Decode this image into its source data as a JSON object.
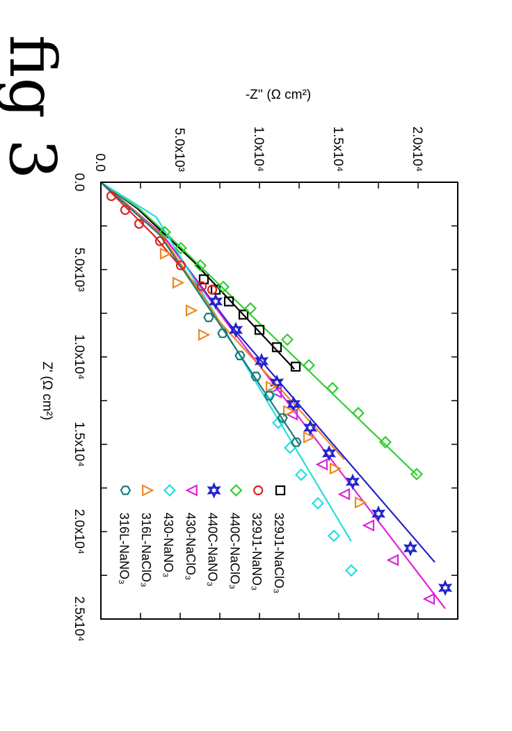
{
  "figure_label": "fig 3",
  "chart_data": {
    "type": "scatter",
    "orientation": "rotated 90 degrees clockwise",
    "xlabel": "Z' (Ω cm²)",
    "ylabel": "-Z'' (Ω cm²)",
    "xlim": [
      0,
      25000
    ],
    "ylim": [
      0,
      22000
    ],
    "x_ticks": [
      0,
      5000,
      10000,
      15000,
      20000,
      25000
    ],
    "x_tick_labels": [
      "0.0",
      "5.0x10³",
      "1.0x10⁴",
      "1.5x10⁴",
      "2.0x10⁴",
      "2.5x10⁴"
    ],
    "y_ticks": [
      0,
      5000,
      10000,
      15000,
      20000
    ],
    "y_tick_labels": [
      "0.0",
      "5.0x10³",
      "1.0x10⁴",
      "1.5x10⁴",
      "2.0x10⁴"
    ],
    "grid": false,
    "legend_position": "bottom-right",
    "series": [
      {
        "name": "329J1-NaClO₃",
        "color": "#000000",
        "marker": "square",
        "points": [
          [
            5556,
            6491
          ],
          [
            6151,
            7237
          ],
          [
            6825,
            8070
          ],
          [
            7579,
            8991
          ],
          [
            8452,
            10000
          ],
          [
            9444,
            11096
          ],
          [
            10556,
            12281
          ]
        ],
        "fit": [
          [
            0,
            0
          ],
          [
            1500,
            2300
          ],
          [
            4500,
            5800
          ],
          [
            10700,
            12200
          ]
        ]
      },
      {
        "name": "329J1-NaNO₃",
        "color": "#e02020",
        "marker": "circle",
        "points": [
          [
            794,
            658
          ],
          [
            1587,
            1535
          ],
          [
            2381,
            2412
          ],
          [
            3373,
            3728
          ],
          [
            4762,
            5044
          ],
          [
            5952,
            6360
          ],
          [
            6151,
            7018
          ]
        ],
        "fit": [
          [
            0,
            0
          ],
          [
            3000,
            3300
          ],
          [
            6200,
            6300
          ]
        ]
      },
      {
        "name": "440C-NaClO₃",
        "color": "#33cc33",
        "marker": "diamond",
        "points": [
          [
            2857,
            4035
          ],
          [
            3770,
            5044
          ],
          [
            4762,
            6272
          ],
          [
            5992,
            7719
          ],
          [
            7222,
            9430
          ],
          [
            9008,
            11754
          ],
          [
            10476,
            13114
          ],
          [
            11786,
            14605
          ],
          [
            13214,
            16228
          ],
          [
            14881,
            17939
          ],
          [
            16706,
            19912
          ]
        ],
        "fit": [
          [
            0,
            0
          ],
          [
            1500,
            2400
          ],
          [
            2857,
            4035
          ],
          [
            16786,
            19956
          ]
        ]
      },
      {
        "name": "440C-NaNO₃",
        "color": "#2222cc",
        "marker": "star",
        "points": [
          [
            6825,
            7237
          ],
          [
            8452,
            8509
          ],
          [
            10238,
            10132
          ],
          [
            11468,
            11096
          ],
          [
            12698,
            12149
          ],
          [
            14048,
            13202
          ],
          [
            15516,
            14386
          ],
          [
            17143,
            15877
          ],
          [
            18968,
            17500
          ],
          [
            20952,
            19518
          ],
          [
            23214,
            21711
          ]
        ],
        "fit": [
          [
            0,
            0
          ],
          [
            3000,
            3900
          ],
          [
            8000,
            8000
          ],
          [
            21746,
            21053
          ]
        ]
      },
      {
        "name": "430-NaClO₃",
        "color": "#dd22dd",
        "marker": "triangle-left",
        "points": [
          [
            12024,
            11053
          ],
          [
            13294,
            12061
          ],
          [
            16151,
            13947
          ],
          [
            17857,
            15351
          ],
          [
            19643,
            16886
          ],
          [
            21627,
            18421
          ],
          [
            23849,
            20702
          ]
        ],
        "fit": [
          [
            0,
            0
          ],
          [
            3000,
            3900
          ],
          [
            8000,
            7900
          ],
          [
            24405,
            21711
          ]
        ]
      },
      {
        "name": "430-NaNO₃",
        "color": "#22dddd",
        "marker": "diamond",
        "points": [
          [
            12143,
            10614
          ],
          [
            13770,
            11184
          ],
          [
            15198,
            11930
          ],
          [
            16746,
            12632
          ],
          [
            18373,
            13684
          ],
          [
            20238,
            14693
          ],
          [
            22222,
            15789
          ]
        ],
        "fit": [
          [
            0,
            0
          ],
          [
            2000,
            3500
          ],
          [
            8000,
            7500
          ],
          [
            20556,
            15789
          ]
        ]
      },
      {
        "name": "316L-NaClO₃",
        "color": "#ee8822",
        "marker": "triangle-right",
        "points": [
          [
            4087,
            4079
          ],
          [
            5754,
            4868
          ],
          [
            7341,
            5702
          ],
          [
            8730,
            6491
          ],
          [
            11706,
            10746
          ],
          [
            13095,
            11842
          ],
          [
            14603,
            13114
          ],
          [
            16389,
            14781
          ],
          [
            18333,
            16360
          ]
        ],
        "fit": [
          [
            0,
            0
          ],
          [
            3000,
            3800
          ],
          [
            8000,
            7500
          ],
          [
            15873,
            15351
          ]
        ]
      },
      {
        "name": "316L-NaNO₃",
        "color": "#1a7a7a",
        "marker": "hexagon",
        "points": [
          [
            7738,
            6798
          ],
          [
            8651,
            7675
          ],
          [
            9921,
            8772
          ],
          [
            11111,
            9781
          ],
          [
            12222,
            10614
          ],
          [
            13492,
            11447
          ],
          [
            14881,
            12325
          ]
        ],
        "fit": [
          [
            0,
            0
          ],
          [
            3000,
            3700
          ],
          [
            8000,
            7400
          ],
          [
            15000,
            12500
          ]
        ]
      }
    ]
  }
}
